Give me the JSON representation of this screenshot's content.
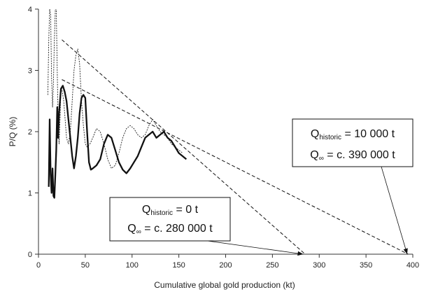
{
  "chart_data": {
    "type": "line",
    "xlabel": "Cumulative global gold production (kt)",
    "ylabel": "P/Q (%)",
    "xlim": [
      0,
      400
    ],
    "ylim": [
      0,
      4
    ],
    "xticks": [
      0,
      50,
      100,
      150,
      200,
      250,
      300,
      350,
      400
    ],
    "yticks": [
      0,
      1,
      2,
      3,
      4
    ],
    "grid": false,
    "legend": "none",
    "series": [
      {
        "style": "thin dotted",
        "color": "#222222",
        "points": [
          [
            10,
            2.6
          ],
          [
            11,
            3.5
          ],
          [
            12,
            4.0
          ],
          [
            13,
            3.9
          ],
          [
            14,
            2.9
          ],
          [
            15,
            2.4
          ],
          [
            16,
            2.8
          ],
          [
            17,
            3.5
          ],
          [
            18,
            4.0
          ],
          [
            19,
            4.0
          ],
          [
            20,
            3.0
          ],
          [
            21,
            2.2
          ],
          [
            22,
            1.8
          ],
          [
            23,
            2.2
          ],
          [
            24,
            2.7
          ],
          [
            25,
            2.7
          ],
          [
            27,
            2.5
          ],
          [
            30,
            1.9
          ],
          [
            32,
            1.8
          ],
          [
            34,
            2.0
          ],
          [
            36,
            2.5
          ],
          [
            38,
            3.0
          ],
          [
            40,
            3.25
          ],
          [
            42,
            3.35
          ],
          [
            44,
            3.1
          ],
          [
            46,
            2.5
          ],
          [
            48,
            2.1
          ],
          [
            50,
            1.8
          ],
          [
            52,
            1.75
          ],
          [
            55,
            1.8
          ],
          [
            58,
            1.9
          ],
          [
            62,
            2.05
          ],
          [
            66,
            2.0
          ],
          [
            70,
            1.8
          ],
          [
            74,
            1.55
          ],
          [
            78,
            1.4
          ],
          [
            82,
            1.45
          ],
          [
            86,
            1.65
          ],
          [
            90,
            1.9
          ],
          [
            94,
            2.05
          ],
          [
            98,
            2.1
          ],
          [
            102,
            2.05
          ],
          [
            106,
            1.95
          ],
          [
            110,
            1.9
          ],
          [
            114,
            1.95
          ],
          [
            118,
            2.1
          ],
          [
            122,
            2.2
          ],
          [
            126,
            2.1
          ],
          [
            130,
            2.0
          ],
          [
            134,
            1.95
          ],
          [
            138,
            1.9
          ],
          [
            142,
            1.8
          ],
          [
            146,
            1.75
          ],
          [
            150,
            1.7
          ],
          [
            154,
            1.65
          ]
        ]
      },
      {
        "style": "thick solid",
        "color": "#111111",
        "points": [
          [
            11,
            1.1
          ],
          [
            12,
            2.2
          ],
          [
            13,
            1.3
          ],
          [
            14,
            1.0
          ],
          [
            15,
            1.4
          ],
          [
            16,
            0.95
          ],
          [
            17,
            0.92
          ],
          [
            18,
            1.3
          ],
          [
            19,
            1.7
          ],
          [
            20,
            2.4
          ],
          [
            21,
            1.9
          ],
          [
            22,
            2.3
          ],
          [
            24,
            2.7
          ],
          [
            26,
            2.75
          ],
          [
            28,
            2.65
          ],
          [
            30,
            2.5
          ],
          [
            32,
            2.2
          ],
          [
            34,
            1.9
          ],
          [
            36,
            1.6
          ],
          [
            38,
            1.4
          ],
          [
            40,
            1.6
          ],
          [
            42,
            1.9
          ],
          [
            44,
            2.3
          ],
          [
            46,
            2.55
          ],
          [
            48,
            2.6
          ],
          [
            50,
            2.55
          ],
          [
            52,
            2.0
          ],
          [
            54,
            1.5
          ],
          [
            56,
            1.38
          ],
          [
            58,
            1.4
          ],
          [
            62,
            1.45
          ],
          [
            66,
            1.55
          ],
          [
            70,
            1.8
          ],
          [
            74,
            1.95
          ],
          [
            78,
            1.9
          ],
          [
            82,
            1.7
          ],
          [
            86,
            1.5
          ],
          [
            90,
            1.38
          ],
          [
            94,
            1.32
          ],
          [
            98,
            1.4
          ],
          [
            102,
            1.5
          ],
          [
            106,
            1.6
          ],
          [
            110,
            1.75
          ],
          [
            114,
            1.9
          ],
          [
            118,
            1.95
          ],
          [
            122,
            2.0
          ],
          [
            126,
            1.9
          ],
          [
            130,
            1.95
          ],
          [
            134,
            2.0
          ],
          [
            138,
            1.9
          ],
          [
            142,
            1.85
          ],
          [
            146,
            1.75
          ],
          [
            150,
            1.65
          ],
          [
            154,
            1.6
          ],
          [
            158,
            1.55
          ]
        ]
      }
    ],
    "projections": [
      {
        "style": "dashed",
        "from": [
          25,
          3.5
        ],
        "to": [
          285,
          0
        ]
      },
      {
        "style": "dashed",
        "from": [
          25,
          2.85
        ],
        "to": [
          395,
          0
        ]
      }
    ],
    "annotations": [
      {
        "line1_main": "Q",
        "line1_sub": "historic",
        "line1_rest": " = 0 t",
        "line2_main": "Q",
        "line2_sub": "∞",
        "line2_rest": " = c. 280 000 t",
        "arrow_to": [
          283,
          0
        ]
      },
      {
        "line1_main": "Q",
        "line1_sub": "historic",
        "line1_rest": " = 10 000 t",
        "line2_main": "Q",
        "line2_sub": "∞",
        "line2_rest": " = c. 390 000 t",
        "arrow_to": [
          394,
          0
        ]
      }
    ]
  }
}
